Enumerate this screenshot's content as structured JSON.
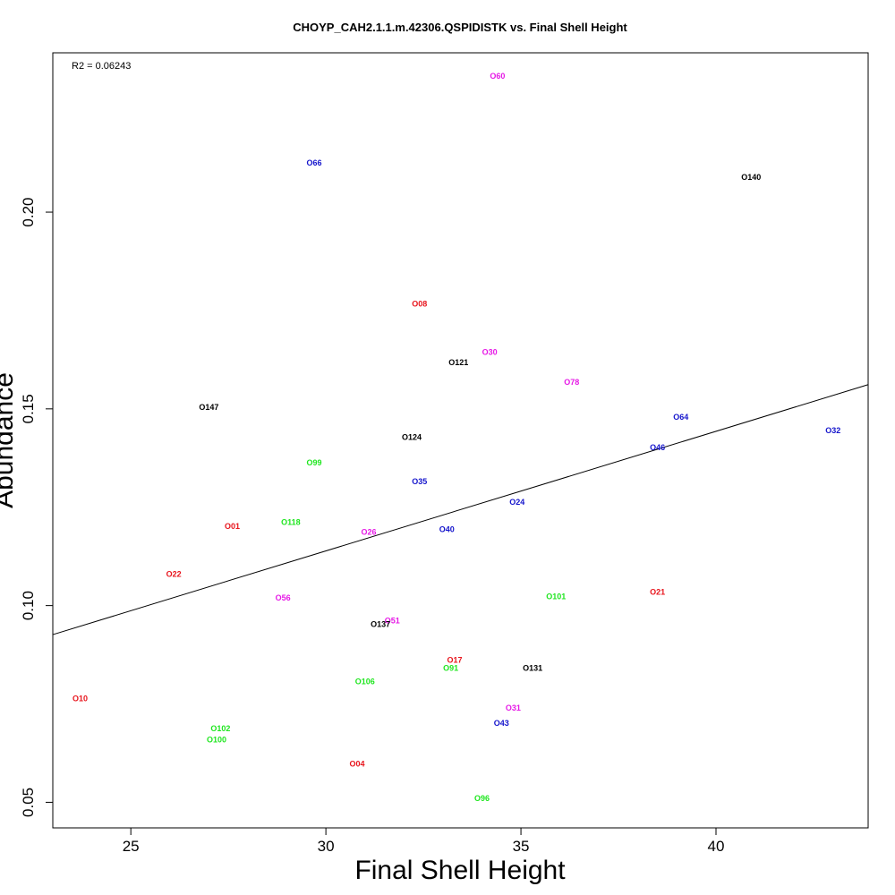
{
  "chart_data": {
    "type": "scatter",
    "title": "CHOYP_CAH2.1.1.m.42306.QSPIDISTK vs. Final Shell Height",
    "xlabel": "Final Shell Height",
    "ylabel": "Abundance",
    "annotation": "R2 = 0.06243",
    "xlim": [
      23.0,
      43.9
    ],
    "ylim": [
      0.0435,
      0.2405
    ],
    "x_ticks": [
      25,
      30,
      35,
      40
    ],
    "y_ticks": [
      0.05,
      0.1,
      0.15,
      0.2
    ],
    "x_tick_labels": [
      "25",
      "30",
      "35",
      "40"
    ],
    "y_tick_labels": [
      "0.05",
      "0.10",
      "0.15",
      "0.20"
    ],
    "regression_line": {
      "intercept": 0.0227,
      "slope": 0.00304
    },
    "colors": {
      "red": "#e8141c",
      "magenta": "#e619e6",
      "blue": "#1414cc",
      "green": "#1fe61f",
      "black": "#000000",
      "line": "#000000"
    },
    "points": [
      {
        "label": "O60",
        "x": 34.4,
        "y": 0.2345,
        "color": "magenta"
      },
      {
        "label": "O66",
        "x": 29.7,
        "y": 0.2124,
        "color": "blue"
      },
      {
        "label": "O140",
        "x": 40.9,
        "y": 0.2087,
        "color": "black"
      },
      {
        "label": "O08",
        "x": 32.4,
        "y": 0.1765,
        "color": "red"
      },
      {
        "label": "O30",
        "x": 34.2,
        "y": 0.1643,
        "color": "magenta"
      },
      {
        "label": "O121",
        "x": 33.4,
        "y": 0.1616,
        "color": "black"
      },
      {
        "label": "O78",
        "x": 36.3,
        "y": 0.1566,
        "color": "magenta"
      },
      {
        "label": "O147",
        "x": 27.0,
        "y": 0.1503,
        "color": "black"
      },
      {
        "label": "O64",
        "x": 39.1,
        "y": 0.1478,
        "color": "blue"
      },
      {
        "label": "O32",
        "x": 43.0,
        "y": 0.1444,
        "color": "blue"
      },
      {
        "label": "O124",
        "x": 32.2,
        "y": 0.1427,
        "color": "black"
      },
      {
        "label": "O46",
        "x": 38.5,
        "y": 0.14,
        "color": "blue"
      },
      {
        "label": "O99",
        "x": 29.7,
        "y": 0.1362,
        "color": "green"
      },
      {
        "label": "O35",
        "x": 32.4,
        "y": 0.1314,
        "color": "blue"
      },
      {
        "label": "O24",
        "x": 34.9,
        "y": 0.1262,
        "color": "blue"
      },
      {
        "label": "O118",
        "x": 29.1,
        "y": 0.121,
        "color": "green"
      },
      {
        "label": "O01",
        "x": 27.6,
        "y": 0.12,
        "color": "red"
      },
      {
        "label": "O40",
        "x": 33.1,
        "y": 0.1192,
        "color": "blue"
      },
      {
        "label": "O26",
        "x": 31.1,
        "y": 0.1185,
        "color": "magenta"
      },
      {
        "label": "O22",
        "x": 26.1,
        "y": 0.1078,
        "color": "red"
      },
      {
        "label": "O21",
        "x": 38.5,
        "y": 0.1033,
        "color": "red"
      },
      {
        "label": "O101",
        "x": 35.9,
        "y": 0.1022,
        "color": "green"
      },
      {
        "label": "O56",
        "x": 28.9,
        "y": 0.1018,
        "color": "magenta"
      },
      {
        "label": "O51",
        "x": 31.7,
        "y": 0.096,
        "color": "magenta"
      },
      {
        "label": "O137",
        "x": 31.4,
        "y": 0.0951,
        "color": "black"
      },
      {
        "label": "O17",
        "x": 33.3,
        "y": 0.086,
        "color": "red"
      },
      {
        "label": "O131",
        "x": 35.3,
        "y": 0.084,
        "color": "black"
      },
      {
        "label": "O91",
        "x": 33.2,
        "y": 0.084,
        "color": "green"
      },
      {
        "label": "O106",
        "x": 31.0,
        "y": 0.0806,
        "color": "green"
      },
      {
        "label": "O10",
        "x": 23.7,
        "y": 0.0762,
        "color": "red"
      },
      {
        "label": "O31",
        "x": 34.8,
        "y": 0.0738,
        "color": "magenta"
      },
      {
        "label": "O43",
        "x": 34.5,
        "y": 0.07,
        "color": "blue"
      },
      {
        "label": "O102",
        "x": 27.3,
        "y": 0.0686,
        "color": "green"
      },
      {
        "label": "O100",
        "x": 27.2,
        "y": 0.0658,
        "color": "green"
      },
      {
        "label": "O04",
        "x": 30.8,
        "y": 0.0596,
        "color": "red"
      },
      {
        "label": "O96",
        "x": 34.0,
        "y": 0.0509,
        "color": "green"
      }
    ]
  }
}
